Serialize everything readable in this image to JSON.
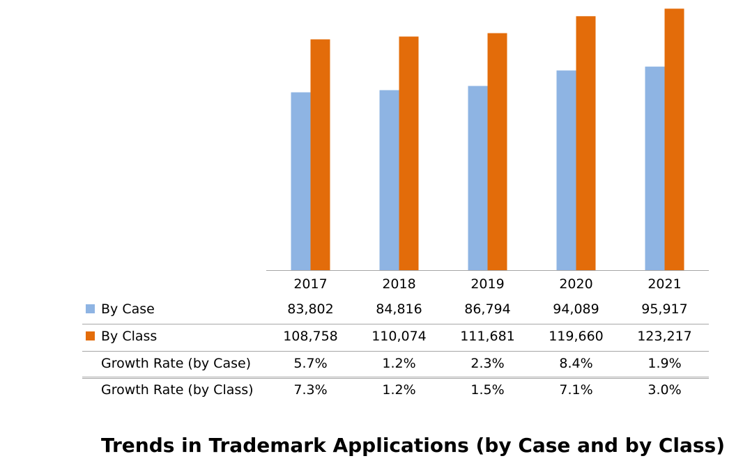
{
  "chart_data": {
    "type": "bar",
    "title": "Trends in Trademark Applications (by Case and by Class)",
    "categories": [
      "2017",
      "2018",
      "2019",
      "2020",
      "2021"
    ],
    "series": [
      {
        "name": "By Case",
        "color": "#8eb4e3",
        "values": [
          83802,
          84816,
          86794,
          94089,
          95917
        ],
        "display": [
          "83,802",
          "84,816",
          "86,794",
          "94,089",
          "95,917"
        ]
      },
      {
        "name": "By Class",
        "color": "#e36c0a",
        "values": [
          108758,
          110074,
          111681,
          119660,
          123217
        ],
        "display": [
          "108,758",
          "110,074",
          "111,681",
          "119,660",
          "123,217"
        ]
      }
    ],
    "table_rows": [
      {
        "label": "Growth Rate (by Case)",
        "values": [
          "5.7%",
          "1.2%",
          "2.3%",
          "8.4%",
          "1.9%"
        ]
      },
      {
        "label": "Growth Rate (by Class)",
        "values": [
          "7.3%",
          "1.2%",
          "1.5%",
          "7.1%",
          "3.0%"
        ]
      }
    ],
    "ylim": [
      0,
      125000
    ],
    "grid": false,
    "legend": "data-table"
  }
}
